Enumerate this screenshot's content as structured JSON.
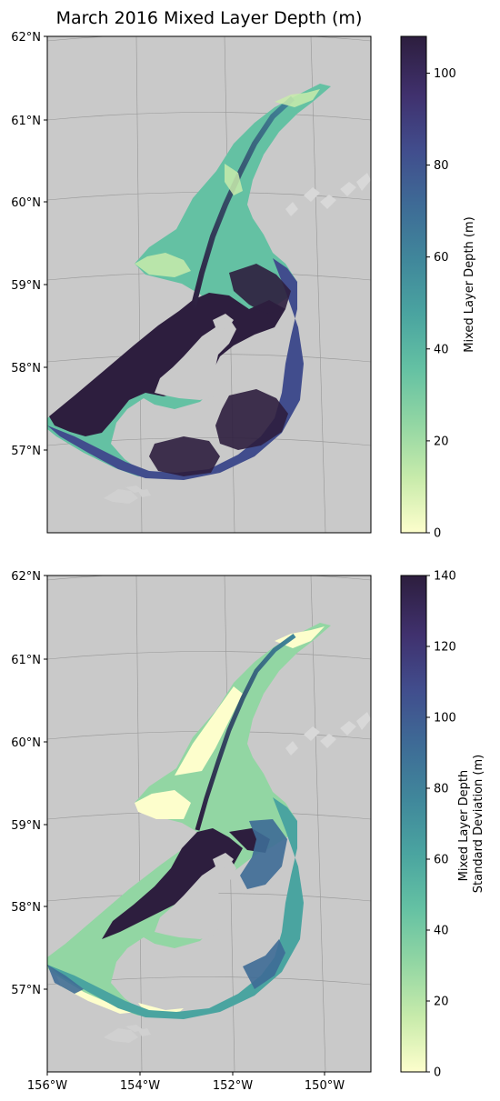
{
  "title": "March 2016 Mixed Layer Depth (m)",
  "colors": {
    "land": "#c9c9c9",
    "coast_island": "#d0d0d0",
    "cmap": [
      "#fdfecc",
      "#c8ebab",
      "#92d6a3",
      "#64c1a3",
      "#4aa4a0",
      "#40879b",
      "#3e6b96",
      "#414d8d",
      "#40316e",
      "#2d1e3e"
    ]
  },
  "chart_data": [
    {
      "type": "heatmap",
      "title": "March 2016 Mixed Layer Depth (m)",
      "colorbar_label": "Mixed Layer Depth (m)",
      "colorbar_range": [
        0,
        108
      ],
      "colorbar_ticks": [
        0,
        20,
        40,
        60,
        80,
        100
      ],
      "y_ticks": [
        "62°N",
        "61°N",
        "60°N",
        "59°N",
        "58°N",
        "57°N"
      ],
      "x_ticks": [],
      "lon_range": [
        -156,
        -149
      ],
      "lat_range": [
        56,
        62
      ],
      "grid": true
    },
    {
      "type": "heatmap",
      "title": "",
      "colorbar_label": [
        "Mixed Layer Depth",
        "Standard Deviation (m)"
      ],
      "colorbar_range": [
        0,
        140
      ],
      "colorbar_ticks": [
        0,
        20,
        40,
        60,
        80,
        100,
        120,
        140
      ],
      "y_ticks": [
        "62°N",
        "61°N",
        "60°N",
        "59°N",
        "58°N",
        "57°N"
      ],
      "x_ticks": [
        "156°W",
        "154°W",
        "152°W",
        "150°W"
      ],
      "lon_range": [
        -156,
        -149
      ],
      "lat_range": [
        56,
        62
      ],
      "grid": true
    }
  ]
}
